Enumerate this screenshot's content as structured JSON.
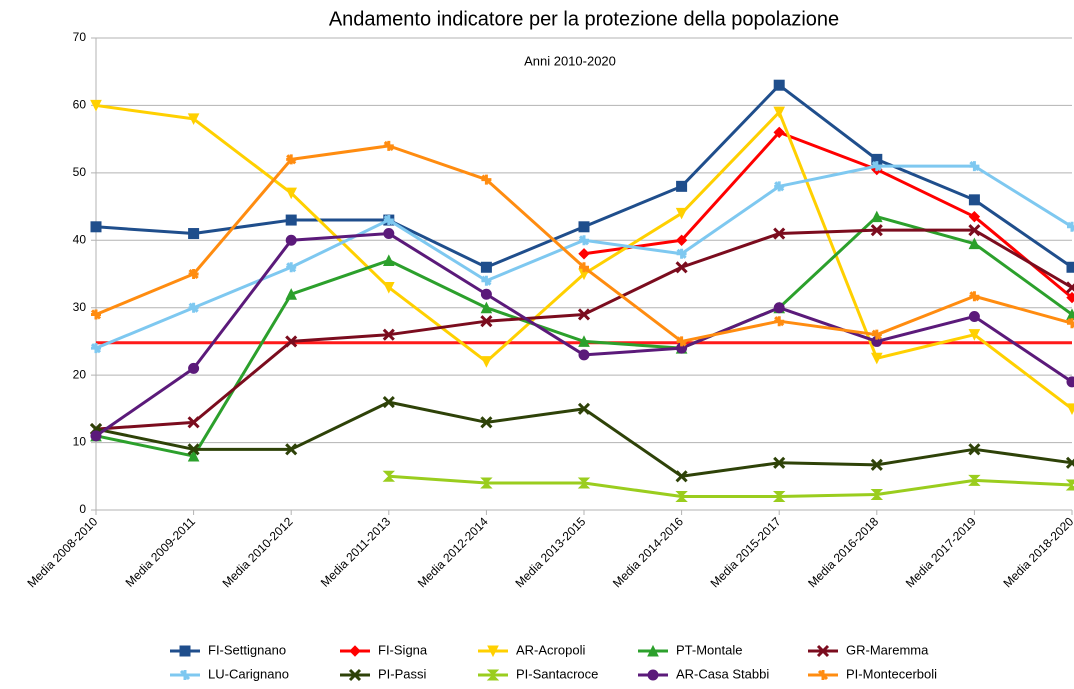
{
  "chart_data": {
    "type": "line",
    "title": "Andamento indicatore per la protezione della popolazione",
    "subtitle": "Anni 2010-2020",
    "categories": [
      "Media 2008-2010",
      "Media 2009-2011",
      "Media 2010-2012",
      "Media 2011-2013",
      "Media 2012-2014",
      "Media 2013-2015",
      "Media 2014-2016",
      "Media 2015-2017",
      "Media 2016-2018",
      "Media 2017-2019",
      "Media 2018-2020"
    ],
    "series": [
      {
        "name": "FI-Settignano",
        "color": "#1f4e8c",
        "marker": "square",
        "values": [
          42,
          41,
          43,
          43,
          36,
          42,
          48,
          63,
          52,
          46,
          36
        ]
      },
      {
        "name": "FI-Signa",
        "color": "#ff0000",
        "marker": "diamond",
        "values": [
          null,
          null,
          null,
          null,
          null,
          38,
          40,
          56,
          50.5,
          43.5,
          31.5
        ]
      },
      {
        "name": "AR-Acropoli",
        "color": "#ffd000",
        "marker": "down",
        "values": [
          60,
          58,
          47,
          33,
          22,
          35,
          44,
          59,
          22.5,
          26,
          15
        ]
      },
      {
        "name": "PT-Montale",
        "color": "#2ca02c",
        "marker": "up",
        "values": [
          11,
          8,
          32,
          37,
          30,
          25,
          24,
          30,
          43.5,
          39.5,
          29
        ]
      },
      {
        "name": "GR-Maremma",
        "color": "#7b0c1e",
        "marker": "cross",
        "values": [
          12,
          13,
          25,
          26,
          28,
          29,
          36,
          41,
          41.5,
          41.5,
          33
        ]
      },
      {
        "name": "LU-Carignano",
        "color": "#7ec8f0",
        "marker": "star",
        "values": [
          24,
          30,
          36,
          43,
          34,
          40,
          38,
          48,
          51,
          51,
          42
        ]
      },
      {
        "name": "PI-Passi",
        "color": "#2e4208",
        "marker": "cross",
        "values": [
          12,
          9,
          9,
          16,
          13,
          15,
          5,
          7,
          6.7,
          9,
          7
        ]
      },
      {
        "name": "PI-Santacroce",
        "color": "#9acd1e",
        "marker": "hourglass",
        "values": [
          null,
          null,
          null,
          5,
          4,
          4,
          2,
          2,
          2.3,
          4.4,
          3.7
        ]
      },
      {
        "name": "AR-Casa Stabbi",
        "color": "#5b1a7a",
        "marker": "circle",
        "values": [
          11,
          21,
          40,
          41,
          32,
          23,
          24,
          30,
          25,
          28.7,
          19
        ]
      },
      {
        "name": "PI-Montecerboli",
        "color": "#ff8c10",
        "marker": "star",
        "values": [
          29,
          35,
          52,
          54,
          49,
          36,
          25,
          28,
          26,
          31.7,
          27.7
        ]
      }
    ],
    "threshold": {
      "value": 24.8,
      "color": "#ff1a1a"
    },
    "ylim": [
      0,
      70
    ],
    "yticks": [
      0,
      10,
      20,
      30,
      40,
      50,
      60,
      70
    ],
    "grid": true,
    "legend": "bottom"
  }
}
